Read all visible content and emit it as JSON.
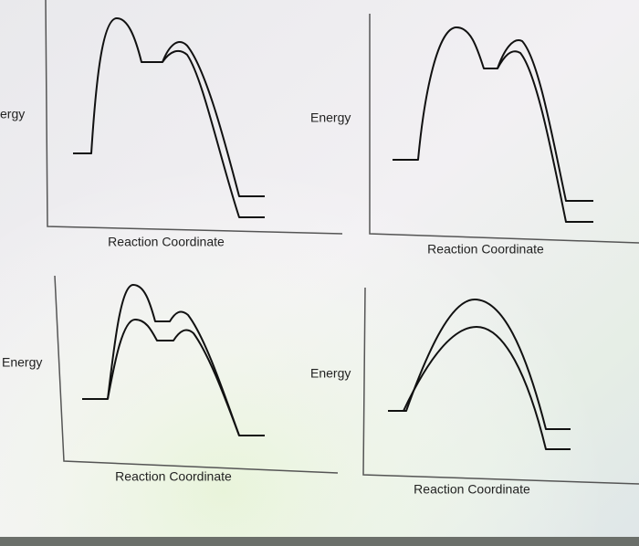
{
  "panels": [
    {
      "y_label": "ergy",
      "x_label": "Reaction Coordinate"
    },
    {
      "y_label": "Energy",
      "x_label": "Reaction Coordinate"
    },
    {
      "y_label": "Energy",
      "x_label": "Reaction Coordinate"
    },
    {
      "y_label": "Energy",
      "x_label": "Reaction Coordinate"
    }
  ]
}
